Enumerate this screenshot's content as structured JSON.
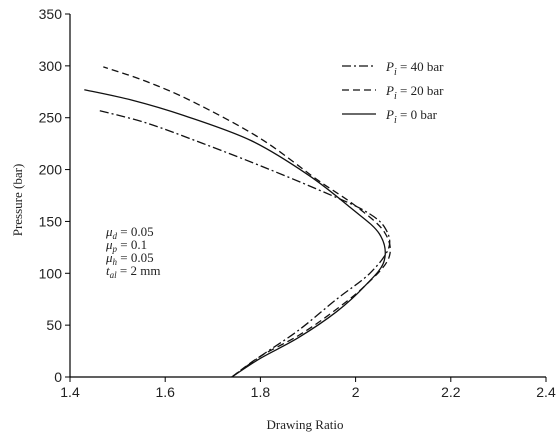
{
  "chart_data": {
    "type": "line",
    "title": "",
    "xlabel": "Drawing Ratio",
    "ylabel": "Pressure (bar)",
    "xlim": [
      1.4,
      2.4
    ],
    "ylim": [
      0,
      350
    ],
    "xticks": [
      "1.4",
      "1.6",
      "1.8",
      "2",
      "2.2",
      "2.4"
    ],
    "yticks": [
      "0",
      "50",
      "100",
      "150",
      "200",
      "250",
      "300",
      "350"
    ],
    "grid": false,
    "legend_position": "top-right",
    "series": [
      {
        "name_sym": "P",
        "name_sub": "i",
        "name_rest": " = 40 bar",
        "style": "dashdot",
        "points": [
          [
            1.74,
            0
          ],
          [
            1.8,
            20
          ],
          [
            1.88,
            45
          ],
          [
            1.96,
            75
          ],
          [
            2.03,
            100
          ],
          [
            2.07,
            125
          ],
          [
            2.06,
            145
          ],
          [
            2.02,
            160
          ],
          [
            1.95,
            175
          ],
          [
            1.82,
            200
          ],
          [
            1.68,
            225
          ],
          [
            1.56,
            245
          ],
          [
            1.46,
            257
          ]
        ]
      },
      {
        "name_sym": "P",
        "name_sub": "i",
        "name_rest": " = 20 bar",
        "style": "dashed",
        "points": [
          [
            1.74,
            0
          ],
          [
            1.8,
            20
          ],
          [
            1.88,
            40
          ],
          [
            1.95,
            62
          ],
          [
            2.02,
            88
          ],
          [
            2.07,
            115
          ],
          [
            2.06,
            140
          ],
          [
            2.0,
            165
          ],
          [
            1.92,
            190
          ],
          [
            1.8,
            230
          ],
          [
            1.66,
            265
          ],
          [
            1.56,
            285
          ],
          [
            1.47,
            299
          ]
        ]
      },
      {
        "name_sym": "P",
        "name_sub": "i",
        "name_rest": " = 0 bar",
        "style": "solid",
        "points": [
          [
            1.74,
            0
          ],
          [
            1.8,
            18
          ],
          [
            1.88,
            38
          ],
          [
            1.96,
            63
          ],
          [
            2.02,
            88
          ],
          [
            2.06,
            112
          ],
          [
            2.05,
            138
          ],
          [
            1.99,
            163
          ],
          [
            1.9,
            195
          ],
          [
            1.78,
            228
          ],
          [
            1.64,
            252
          ],
          [
            1.53,
            267
          ],
          [
            1.43,
            277
          ]
        ]
      }
    ],
    "annotations": [
      {
        "sym": "μ",
        "sub": "d",
        "rest": " = 0.05"
      },
      {
        "sym": "μ",
        "sub": "p",
        "rest": " = 0.1"
      },
      {
        "sym": "μ",
        "sub": "h",
        "rest": " = 0.05"
      },
      {
        "sym": "t",
        "sub": "al",
        "rest": " = 2 mm"
      }
    ]
  }
}
